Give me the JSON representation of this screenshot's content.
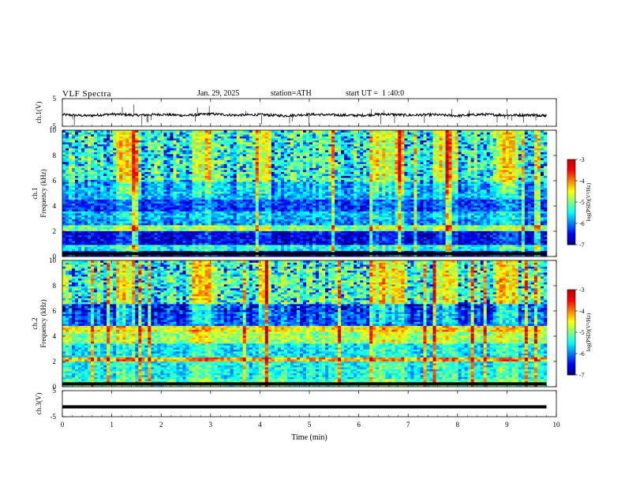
{
  "header": {
    "title": "VLF Spectra",
    "date": "Jan. 29, 2025",
    "station": "station=ATH",
    "start": "start UT =  1 :40:0"
  },
  "chart_data": [
    {
      "type": "line",
      "panel": "ch1-waveform",
      "ylabel": "ch.1(V)",
      "yticks": [
        "5",
        "-5"
      ],
      "ylim": [
        -5,
        5
      ],
      "xlim": [
        0,
        10
      ],
      "series": [
        {
          "x": [
            0,
            0.5,
            1,
            1.5,
            2,
            2.5,
            3,
            3.5,
            4,
            4.5,
            5,
            5.5,
            6,
            6.5,
            7,
            7.5,
            8,
            8.5,
            9,
            9.5,
            9.8
          ],
          "values": [
            -0.8,
            -1.2,
            -0.6,
            -1.0,
            -0.7,
            -1.1,
            -0.5,
            -1.0,
            -0.8,
            -1.2,
            -0.7,
            -0.9,
            -1.1,
            -0.6,
            -1.0,
            -0.8,
            -1.2,
            -0.7,
            -1.0,
            -0.9,
            -1.1
          ]
        }
      ]
    },
    {
      "type": "heatmap",
      "panel": "ch1-spectrogram",
      "ylabel_top": "ch.1",
      "ylabel": "Frequency (kHz)",
      "yticks": [
        "0",
        "2",
        "4",
        "6",
        "8",
        "10"
      ],
      "ylim": [
        0,
        10
      ],
      "xlim": [
        0,
        10
      ],
      "colorbar": {
        "label": "log(PSD)(V²/Hz)",
        "ticks": [
          "-3",
          "-4",
          "-5",
          "-6",
          "-7"
        ],
        "range": [
          -7,
          -3
        ]
      },
      "bands": [
        {
          "f0": 0,
          "f1": 0.5,
          "level": -6.5
        },
        {
          "f0": 0.5,
          "f1": 1.0,
          "level": -5.5
        },
        {
          "f0": 1.0,
          "f1": 2.0,
          "level": -6.6
        },
        {
          "f0": 2.0,
          "f1": 2.5,
          "level": -5.0
        },
        {
          "f0": 2.5,
          "f1": 3.0,
          "level": -6.0
        },
        {
          "f0": 3.0,
          "f1": 3.6,
          "level": -5.8
        },
        {
          "f0": 3.6,
          "f1": 4.5,
          "level": -6.3
        },
        {
          "f0": 4.5,
          "f1": 6.0,
          "level": -5.8
        },
        {
          "f0": 6.0,
          "f1": 10.0,
          "level": -5.2
        }
      ],
      "bursts_min": [
        [
          1.1,
          1.5
        ],
        [
          2.6,
          3.1
        ],
        [
          4.0,
          4.2
        ],
        [
          6.3,
          6.9
        ],
        [
          7.5,
          8.0
        ],
        [
          8.8,
          9.2
        ]
      ]
    },
    {
      "type": "heatmap",
      "panel": "ch2-spectrogram",
      "ylabel_top": "ch.2",
      "ylabel": "Frequency (kHz)",
      "yticks": [
        "0",
        "2",
        "4",
        "6",
        "8",
        "10"
      ],
      "ylim": [
        0,
        10
      ],
      "xlim": [
        0,
        10
      ],
      "colorbar": {
        "label": "log(PSD)(V²/Hz)",
        "ticks": [
          "-3",
          "-4",
          "-5",
          "-6",
          "-7"
        ],
        "range": [
          -7,
          -3
        ]
      },
      "bands": [
        {
          "f0": 0,
          "f1": 0.6,
          "level": -5.2
        },
        {
          "f0": 0.6,
          "f1": 2.0,
          "level": -5.5
        },
        {
          "f0": 2.0,
          "f1": 2.3,
          "level": -4.2
        },
        {
          "f0": 2.3,
          "f1": 3.4,
          "level": -5.6
        },
        {
          "f0": 3.4,
          "f1": 4.4,
          "level": -4.9
        },
        {
          "f0": 4.4,
          "f1": 4.8,
          "level": -4.5
        },
        {
          "f0": 4.8,
          "f1": 6.5,
          "level": -6.2
        },
        {
          "f0": 6.5,
          "f1": 10.0,
          "level": -5.1
        }
      ],
      "bursts_min": [
        [
          1.1,
          1.5
        ],
        [
          2.6,
          3.1
        ],
        [
          4.0,
          4.2
        ],
        [
          6.3,
          6.9
        ],
        [
          7.5,
          8.0
        ],
        [
          8.8,
          9.2
        ]
      ]
    },
    {
      "type": "line",
      "panel": "ch3-waveform",
      "ylabel": "ch.3(V)",
      "yticks": [
        "5",
        "-5"
      ],
      "ylim": [
        -5,
        5
      ],
      "xlim": [
        0,
        10
      ],
      "series": [
        {
          "x": [
            0,
            9.8
          ],
          "values": [
            -1.2,
            -1.2
          ]
        }
      ]
    }
  ],
  "xaxis": {
    "label": "Time (min)",
    "ticks": [
      "0",
      "1",
      "2",
      "3",
      "4",
      "5",
      "6",
      "7",
      "8",
      "9",
      "10"
    ]
  }
}
